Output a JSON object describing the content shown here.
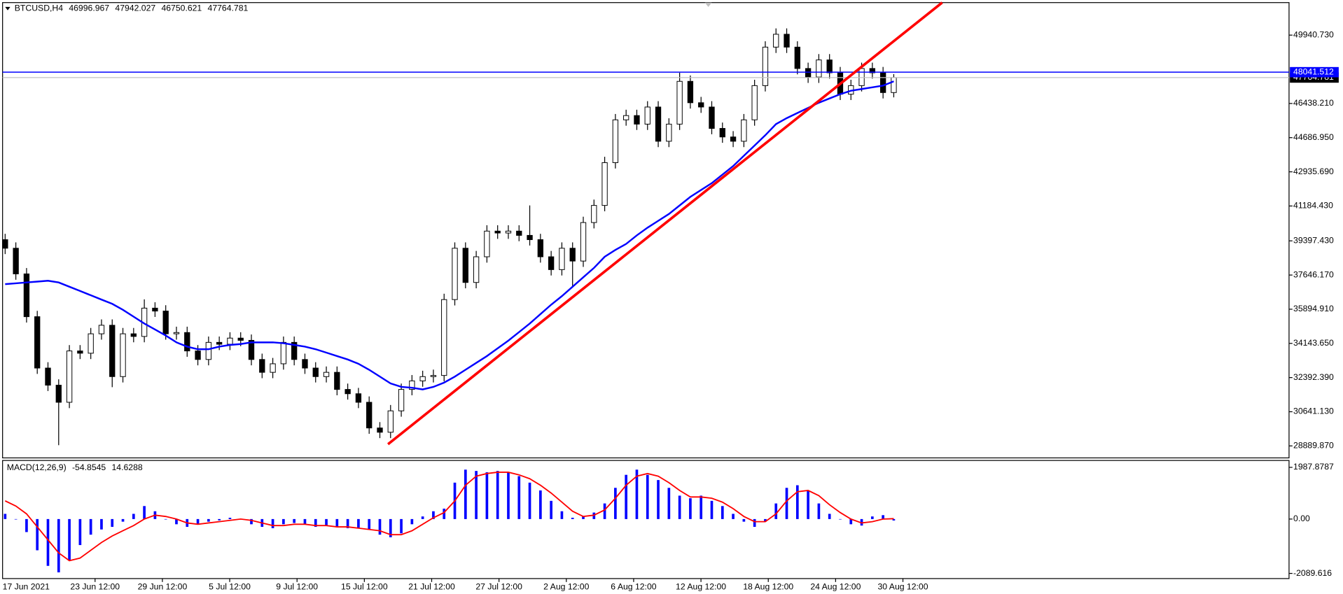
{
  "chart_data": [
    {
      "type": "candlestick",
      "title": "BTCUSD,H4",
      "open": [
        39459,
        39020,
        37705,
        35512,
        32880,
        32003,
        31126,
        33757,
        33640,
        34635,
        35073,
        32442,
        34635,
        34500,
        35951,
        35800,
        34635,
        34700,
        33757,
        33319,
        34196,
        34100,
        34415,
        34300,
        33319,
        32661,
        33099,
        34196,
        33319,
        32880,
        32442,
        32661,
        31784,
        31564,
        31126,
        29810,
        29590,
        30687,
        31784,
        32222,
        32442,
        32500,
        36389,
        39020,
        37266,
        38582,
        39898,
        39800,
        39898,
        39679,
        39459,
        38582,
        37924,
        39020,
        38363,
        40336,
        41213,
        43406,
        45599,
        45818,
        45380,
        46256,
        44502,
        45380,
        47572,
        46476,
        46256,
        45160,
        44722,
        44502,
        45599,
        47353,
        49326,
        49985,
        49326,
        48230,
        47792,
        48669,
        48011,
        46914,
        47353,
        48230,
        48011,
        46996.967
      ],
      "high": [
        39759,
        39320,
        38005,
        35812,
        33180,
        32303,
        34057,
        34057,
        34935,
        35373,
        35373,
        34935,
        34935,
        36400,
        36251,
        36100,
        35000,
        35000,
        34057,
        34496,
        34496,
        34715,
        34715,
        34600,
        33619,
        33399,
        34496,
        34496,
        33619,
        33180,
        32961,
        32961,
        32084,
        31864,
        31426,
        30110,
        30987,
        32084,
        32522,
        32742,
        32800,
        36689,
        39320,
        39320,
        38882,
        40198,
        40198,
        40198,
        40198,
        41213,
        39759,
        38882,
        39320,
        39320,
        40636,
        41513,
        43706,
        45899,
        46118,
        46118,
        46556,
        46556,
        45680,
        48011,
        47872,
        46776,
        46556,
        45460,
        45022,
        45899,
        47653,
        49626,
        50285,
        50285,
        49626,
        48530,
        48969,
        48969,
        48311,
        47653,
        48530,
        48530,
        48311,
        47942.027
      ],
      "low": [
        38720,
        37405,
        35212,
        32580,
        31703,
        28927,
        30826,
        33340,
        33340,
        34335,
        31900,
        32142,
        34200,
        34200,
        35500,
        34335,
        34335,
        33457,
        33019,
        33019,
        33800,
        33800,
        34000,
        33019,
        32361,
        32361,
        32799,
        33019,
        32580,
        32142,
        32142,
        31484,
        31264,
        30826,
        29510,
        29290,
        29290,
        30387,
        31484,
        31922,
        32142,
        32200,
        36089,
        36966,
        36966,
        38282,
        39500,
        39500,
        39379,
        39159,
        38282,
        37624,
        37624,
        37000,
        38063,
        40036,
        40913,
        43106,
        45299,
        45080,
        45080,
        44202,
        44202,
        45080,
        46176,
        45956,
        44860,
        44422,
        44202,
        44202,
        45299,
        47053,
        49026,
        49026,
        47930,
        47492,
        47492,
        47711,
        46614,
        46614,
        47053,
        47711,
        46696,
        46750.621
      ],
      "close": [
        39020,
        37705,
        35512,
        32880,
        32003,
        31126,
        33757,
        33640,
        34635,
        35073,
        32442,
        34635,
        34500,
        35951,
        35800,
        34635,
        34700,
        33757,
        33319,
        34196,
        34100,
        34415,
        34300,
        33319,
        32661,
        33099,
        34196,
        33319,
        32880,
        32442,
        32661,
        31784,
        31564,
        31126,
        29810,
        29590,
        30687,
        31784,
        32222,
        32442,
        32500,
        36389,
        39020,
        37266,
        38582,
        39898,
        39800,
        39898,
        39679,
        39459,
        38582,
        37924,
        39020,
        38363,
        40336,
        41213,
        43406,
        45599,
        45818,
        45380,
        46256,
        44502,
        45380,
        47572,
        46476,
        46256,
        45160,
        44722,
        44502,
        45599,
        47353,
        49326,
        49985,
        49326,
        48230,
        47792,
        48669,
        48011,
        46914,
        47353,
        48230,
        48011,
        46996.967,
        47764.781
      ],
      "up_color": "#ffffff",
      "down_color": "#000000",
      "ma": {
        "color": "#0000ff",
        "values": [
          37179,
          37223,
          37266,
          37310,
          37354,
          37266,
          37047,
          36828,
          36609,
          36389,
          36170,
          35863,
          35512,
          35161,
          34854,
          34547,
          34196,
          33977,
          33845,
          33845,
          33977,
          34065,
          34109,
          34196,
          34196,
          34196,
          34152,
          34065,
          33977,
          33845,
          33670,
          33494,
          33319,
          33099,
          32792,
          32442,
          32091,
          31915,
          31871,
          31784,
          31915,
          32134,
          32442,
          32792,
          33143,
          33494,
          33889,
          34284,
          34722,
          35161,
          35644,
          36126,
          36565,
          37047,
          37530,
          38012,
          38582,
          38933,
          39240,
          39679,
          40073,
          40424,
          40775,
          41213,
          41652,
          42003,
          42354,
          42792,
          43231,
          43757,
          44283,
          44810,
          45380,
          45687,
          45950,
          46213,
          46476,
          46696,
          46914,
          47090,
          47178,
          47265,
          47353,
          47572
        ]
      },
      "price_lines": [
        {
          "value": 48041.512,
          "color": "#0000ff"
        }
      ],
      "ylim": [
        28276,
        51607
      ],
      "yticks": [
        {
          "value": 28889.87,
          "label": "28889.870"
        },
        {
          "value": 30641.13,
          "label": "30641.130"
        },
        {
          "value": 32392.39,
          "label": "32392.390"
        },
        {
          "value": 34143.65,
          "label": "34143.650"
        },
        {
          "value": 35894.91,
          "label": "35894.910"
        },
        {
          "value": 37646.17,
          "label": "37646.170"
        },
        {
          "value": 39397.43,
          "label": "39397.430"
        },
        {
          "value": 41184.43,
          "label": "41184.430"
        },
        {
          "value": 42935.69,
          "label": "42935.690"
        },
        {
          "value": 44686.95,
          "label": "44686.950"
        },
        {
          "value": 46438.21,
          "label": "46438.210"
        },
        {
          "value": 49940.73,
          "label": "49940.730"
        }
      ],
      "x_tick_labels": [
        "17 Jun 2021",
        "23 Jun 12:00",
        "29 Jun 12:00",
        "5 Jul 12:00",
        "9 Jul 12:00",
        "15 Jul 12:00",
        "21 Jul 12:00",
        "27 Jul 12:00",
        "2 Aug 12:00",
        "6 Aug 12:00",
        "12 Aug 12:00",
        "18 Aug 12:00",
        "24 Aug 12:00",
        "30 Aug 12:00"
      ]
    },
    {
      "type": "macd",
      "title": "MACD(12,26,9)",
      "histogram": {
        "color": "#0000ff",
        "values": [
          200,
          0,
          -500,
          -1200,
          -1800,
          -2050,
          -1600,
          -1000,
          -600,
          -400,
          -300,
          -100,
          200,
          500,
          300,
          0,
          -200,
          -300,
          -200,
          -100,
          -50,
          50,
          0,
          -200,
          -300,
          -350,
          -200,
          -150,
          -200,
          -300,
          -250,
          -300,
          -350,
          -350,
          -400,
          -600,
          -700,
          -550,
          -200,
          100,
          300,
          400,
          1400,
          1900,
          1850,
          1800,
          1850,
          1800,
          1650,
          1400,
          1100,
          700,
          300,
          50,
          100,
          250,
          600,
          1200,
          1700,
          1900,
          1700,
          1500,
          1200,
          900,
          800,
          900,
          700,
          500,
          200,
          -100,
          -300,
          -100,
          600,
          1200,
          1300,
          1100,
          600,
          200,
          0,
          -200,
          -250,
          100,
          150,
          -54.8545
        ]
      },
      "signal": {
        "color": "#ff0000",
        "values": [
          700,
          500,
          200,
          -300,
          -800,
          -1300,
          -1600,
          -1500,
          -1200,
          -900,
          -650,
          -450,
          -250,
          0,
          150,
          100,
          0,
          -150,
          -200,
          -150,
          -100,
          -50,
          0,
          -50,
          -150,
          -250,
          -250,
          -200,
          -200,
          -250,
          -250,
          -300,
          -300,
          -350,
          -400,
          -450,
          -600,
          -600,
          -450,
          -200,
          50,
          250,
          700,
          1300,
          1650,
          1750,
          1800,
          1800,
          1700,
          1550,
          1300,
          1000,
          650,
          300,
          100,
          150,
          350,
          800,
          1300,
          1650,
          1750,
          1650,
          1400,
          1100,
          850,
          850,
          800,
          650,
          400,
          100,
          -100,
          -100,
          200,
          700,
          1050,
          1100,
          900,
          550,
          250,
          0,
          -150,
          -100,
          0,
          14.6288
        ]
      },
      "ylim": [
        -2288,
        2253
      ],
      "yticks": [
        1987.8787,
        {
          "value": 0,
          "label": "0.00"
        },
        -2089.616
      ]
    }
  ]
}
